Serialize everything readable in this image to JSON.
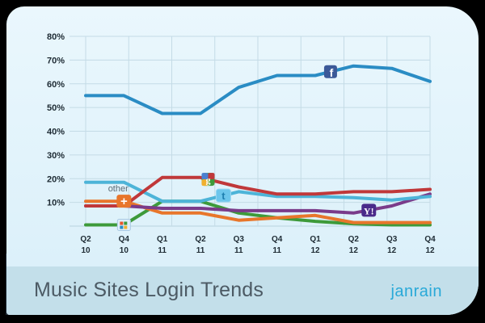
{
  "footer": {
    "title": "Music Sites Login Trends",
    "brand": "janrain"
  },
  "annotations": {
    "other_label": "other"
  },
  "colors": {
    "facebook": "#2a8cc4",
    "google": "#c0383a",
    "twitter": "#4db4d8",
    "yahoo": "#7a3b8a",
    "other": "#e8762b",
    "windows_live": "#3d9a3a",
    "background": "#e6f5fc",
    "footer": "#c3dfea",
    "brand": "#29a9d8"
  },
  "chart_data": {
    "type": "line",
    "title": "Music Sites Login Trends",
    "xlabel": "",
    "ylabel": "",
    "ylim": [
      0,
      80
    ],
    "yticks": [
      "80%",
      "70%",
      "60%",
      "50%",
      "40%",
      "30%",
      "20%",
      "10%"
    ],
    "grid": true,
    "categories": [
      "Q2 10",
      "Q4 10",
      "Q1 11",
      "Q2 11",
      "Q3 11",
      "Q4 11",
      "Q1 12",
      "Q2 12",
      "Q3 12",
      "Q4 12"
    ],
    "x_labels": [
      {
        "q": "Q2",
        "y": "10"
      },
      {
        "q": "Q4",
        "y": "10"
      },
      {
        "q": "Q1",
        "y": "11"
      },
      {
        "q": "Q2",
        "y": "11"
      },
      {
        "q": "Q3",
        "y": "11"
      },
      {
        "q": "Q4",
        "y": "11"
      },
      {
        "q": "Q1",
        "y": "12"
      },
      {
        "q": "Q2",
        "y": "12"
      },
      {
        "q": "Q3",
        "y": "12"
      },
      {
        "q": "Q4",
        "y": "12"
      }
    ],
    "series": [
      {
        "name": "Facebook",
        "color": "#2a8cc4",
        "icon": "facebook-icon",
        "icon_index": 6.4,
        "values": [
          55,
          55,
          47.5,
          47.5,
          58.5,
          63.5,
          63.5,
          67.5,
          66.5,
          61
        ]
      },
      {
        "name": "Google",
        "color": "#c0383a",
        "icon": "google-icon",
        "icon_index": 3.2,
        "values": [
          8.5,
          8.5,
          20.5,
          20.5,
          16.5,
          13.5,
          13.5,
          14.5,
          14.5,
          15.5
        ]
      },
      {
        "name": "Twitter",
        "color": "#4db4d8",
        "icon": "twitter-icon",
        "icon_index": 3.6,
        "values": [
          18.5,
          18.5,
          10.5,
          10.5,
          14.5,
          12.5,
          12.5,
          12,
          11,
          12.5
        ]
      },
      {
        "name": "Yahoo",
        "color": "#7a3b8a",
        "icon": "yahoo-icon",
        "icon_index": 7.4,
        "values": [
          8.5,
          8.5,
          7.5,
          7.5,
          6.5,
          6.5,
          6.5,
          5.5,
          8.5,
          13.5
        ]
      },
      {
        "name": "Other",
        "color": "#e8762b",
        "icon": "plus-icon",
        "icon_index": 1,
        "values": [
          10.5,
          10.5,
          5.5,
          5.5,
          2.5,
          3.5,
          4.5,
          1.5,
          1.5,
          1.5
        ]
      },
      {
        "name": "Windows Live",
        "color": "#3d9a3a",
        "icon": "windows-icon",
        "icon_index": 1,
        "values": [
          0.5,
          0.5,
          10.5,
          10.5,
          5.5,
          3.5,
          2,
          1,
          0.5,
          0.5
        ]
      }
    ]
  }
}
